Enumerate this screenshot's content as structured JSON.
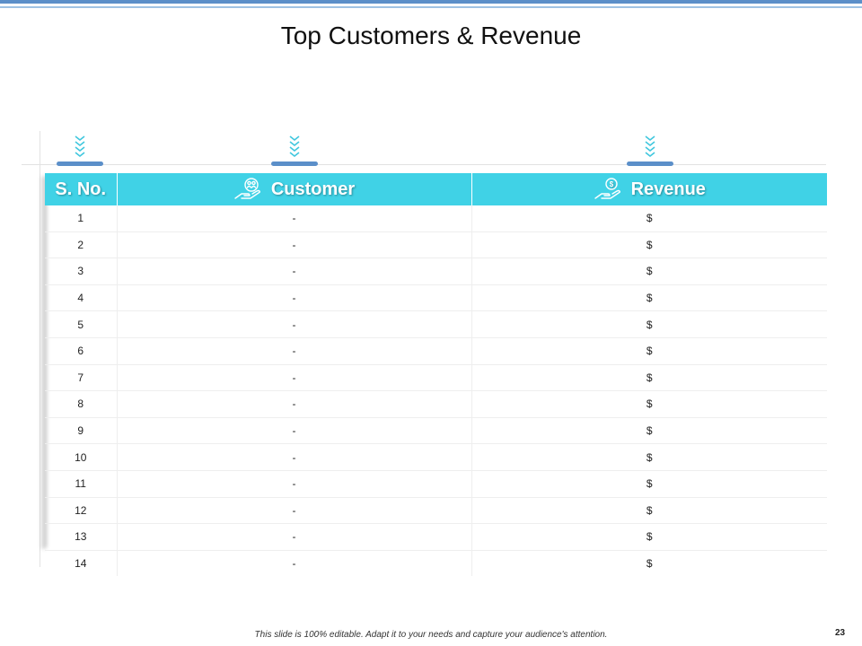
{
  "slide": {
    "title": "Top Customers & Revenue",
    "footer_note": "This slide is 100% editable. Adapt it to your needs and capture your audience's attention.",
    "page_number": "23"
  },
  "colors": {
    "header_bg": "#40d2e6",
    "accent_blue": "#5b8fc9",
    "chevron": "#40c7de"
  },
  "table": {
    "headers": [
      {
        "label": "S. No.",
        "icon": ""
      },
      {
        "label": "Customer",
        "icon": "hand-holding-people-icon"
      },
      {
        "label": "Revenue",
        "icon": "hand-holding-coin-icon"
      }
    ],
    "rows": [
      {
        "sno": "1",
        "customer": "-",
        "revenue": "$"
      },
      {
        "sno": "2",
        "customer": "-",
        "revenue": "$"
      },
      {
        "sno": "3",
        "customer": "-",
        "revenue": "$"
      },
      {
        "sno": "4",
        "customer": "-",
        "revenue": "$"
      },
      {
        "sno": "5",
        "customer": "-",
        "revenue": "$"
      },
      {
        "sno": "6",
        "customer": "-",
        "revenue": "$"
      },
      {
        "sno": "7",
        "customer": "-",
        "revenue": "$"
      },
      {
        "sno": "8",
        "customer": "-",
        "revenue": "$"
      },
      {
        "sno": "9",
        "customer": "-",
        "revenue": "$"
      },
      {
        "sno": "10",
        "customer": "-",
        "revenue": "$"
      },
      {
        "sno": "11",
        "customer": "-",
        "revenue": "$"
      },
      {
        "sno": "12",
        "customer": "-",
        "revenue": "$"
      },
      {
        "sno": "13",
        "customer": "-",
        "revenue": "$"
      },
      {
        "sno": "14",
        "customer": "-",
        "revenue": "$"
      }
    ]
  }
}
